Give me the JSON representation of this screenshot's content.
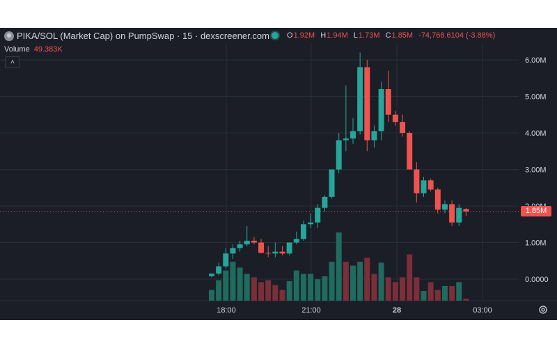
{
  "header": {
    "title": "PIKA/SOL (Market Cap) on PumpSwap · 15 · dexscreener.com",
    "ohlc": [
      {
        "label": "O",
        "value": "1.92M"
      },
      {
        "label": "H",
        "value": "1.94M"
      },
      {
        "label": "L",
        "value": "1.73M"
      },
      {
        "label": "C",
        "value": "1.85M"
      },
      {
        "label": "",
        "value": "-74,768.6104 (-3.88%)"
      }
    ],
    "volume_label": "Volume",
    "volume_value": "49.383K",
    "collapse_icon": "chevron-up-icon"
  },
  "price_badge": "1.85M",
  "colors": {
    "background": "#1b1e26",
    "up": "#26a69a",
    "down": "#ef5350",
    "grid": "#2a2e39",
    "text": "#d1d4dc"
  },
  "chart_data": {
    "type": "candlestick",
    "y_axis_ticks": [
      "6.00M",
      "5.00M",
      "4.00M",
      "3.00M",
      "2.00M",
      "1.00M",
      "0.0000"
    ],
    "x_axis_ticks": [
      "18:00",
      "21:00",
      "28",
      "03:00"
    ],
    "ylim": [
      -0.5,
      6.5
    ],
    "current_price": 1.85,
    "candles": [
      {
        "o": 0.08,
        "h": 0.15,
        "l": 0.05,
        "c": 0.15
      },
      {
        "o": 0.15,
        "h": 0.45,
        "l": 0.1,
        "c": 0.35
      },
      {
        "o": 0.35,
        "h": 0.85,
        "l": 0.3,
        "c": 0.7
      },
      {
        "o": 0.7,
        "h": 0.95,
        "l": 0.55,
        "c": 0.85
      },
      {
        "o": 0.85,
        "h": 1.05,
        "l": 0.75,
        "c": 0.95
      },
      {
        "o": 0.95,
        "h": 1.45,
        "l": 0.9,
        "c": 1.05
      },
      {
        "o": 1.05,
        "h": 1.15,
        "l": 0.95,
        "c": 1.0
      },
      {
        "o": 1.0,
        "h": 1.1,
        "l": 0.7,
        "c": 0.72
      },
      {
        "o": 0.72,
        "h": 0.9,
        "l": 0.6,
        "c": 0.7
      },
      {
        "o": 0.7,
        "h": 1.0,
        "l": 0.6,
        "c": 0.75
      },
      {
        "o": 0.75,
        "h": 0.9,
        "l": 0.65,
        "c": 0.7
      },
      {
        "o": 0.7,
        "h": 1.0,
        "l": 0.65,
        "c": 1.0
      },
      {
        "o": 1.0,
        "h": 1.3,
        "l": 0.95,
        "c": 1.1
      },
      {
        "o": 1.1,
        "h": 1.6,
        "l": 1.05,
        "c": 1.5
      },
      {
        "o": 1.5,
        "h": 1.8,
        "l": 1.4,
        "c": 1.55
      },
      {
        "o": 1.55,
        "h": 2.05,
        "l": 1.4,
        "c": 1.95
      },
      {
        "o": 1.95,
        "h": 2.3,
        "l": 1.85,
        "c": 2.25
      },
      {
        "o": 2.25,
        "h": 3.0,
        "l": 2.2,
        "c": 3.0
      },
      {
        "o": 3.0,
        "h": 4.0,
        "l": 2.9,
        "c": 3.8
      },
      {
        "o": 3.8,
        "h": 5.3,
        "l": 3.5,
        "c": 3.85
      },
      {
        "o": 3.85,
        "h": 4.4,
        "l": 3.7,
        "c": 4.05
      },
      {
        "o": 4.05,
        "h": 6.2,
        "l": 3.95,
        "c": 5.8
      },
      {
        "o": 5.8,
        "h": 6.0,
        "l": 3.5,
        "c": 3.8
      },
      {
        "o": 3.8,
        "h": 4.2,
        "l": 3.6,
        "c": 4.05
      },
      {
        "o": 4.05,
        "h": 5.4,
        "l": 3.8,
        "c": 5.2
      },
      {
        "o": 5.2,
        "h": 5.7,
        "l": 4.3,
        "c": 4.5
      },
      {
        "o": 4.5,
        "h": 4.6,
        "l": 4.2,
        "c": 4.3
      },
      {
        "o": 4.3,
        "h": 4.5,
        "l": 3.9,
        "c": 4.0
      },
      {
        "o": 4.0,
        "h": 4.05,
        "l": 3.0,
        "c": 3.0
      },
      {
        "o": 3.0,
        "h": 3.2,
        "l": 2.1,
        "c": 2.35
      },
      {
        "o": 2.35,
        "h": 2.8,
        "l": 2.25,
        "c": 2.7
      },
      {
        "o": 2.7,
        "h": 2.75,
        "l": 2.4,
        "c": 2.45
      },
      {
        "o": 2.45,
        "h": 2.5,
        "l": 1.8,
        "c": 1.9
      },
      {
        "o": 1.9,
        "h": 2.15,
        "l": 1.8,
        "c": 2.05
      },
      {
        "o": 2.05,
        "h": 2.15,
        "l": 1.45,
        "c": 1.55
      },
      {
        "o": 1.55,
        "h": 2.05,
        "l": 1.45,
        "c": 1.95
      },
      {
        "o": 1.92,
        "h": 1.94,
        "l": 1.73,
        "c": 1.85
      }
    ],
    "volumes": [
      {
        "v": 0.22,
        "up": true
      },
      {
        "v": 0.42,
        "up": true
      },
      {
        "v": 0.62,
        "up": true
      },
      {
        "v": 0.8,
        "up": true
      },
      {
        "v": 0.68,
        "up": true
      },
      {
        "v": 0.55,
        "up": true
      },
      {
        "v": 0.48,
        "up": false
      },
      {
        "v": 0.38,
        "up": false
      },
      {
        "v": 0.42,
        "up": false
      },
      {
        "v": 0.32,
        "up": false
      },
      {
        "v": 0.22,
        "up": false
      },
      {
        "v": 0.4,
        "up": true
      },
      {
        "v": 0.62,
        "up": true
      },
      {
        "v": 0.55,
        "up": true
      },
      {
        "v": 0.55,
        "up": true
      },
      {
        "v": 0.44,
        "up": true
      },
      {
        "v": 0.5,
        "up": true
      },
      {
        "v": 0.8,
        "up": true
      },
      {
        "v": 1.4,
        "up": true
      },
      {
        "v": 0.8,
        "up": false
      },
      {
        "v": 0.72,
        "up": true
      },
      {
        "v": 0.8,
        "up": true
      },
      {
        "v": 0.88,
        "up": false
      },
      {
        "v": 0.55,
        "up": false
      },
      {
        "v": 0.78,
        "up": true
      },
      {
        "v": 0.48,
        "up": false
      },
      {
        "v": 0.38,
        "up": false
      },
      {
        "v": 0.48,
        "up": false
      },
      {
        "v": 0.95,
        "up": false
      },
      {
        "v": 0.48,
        "up": false
      },
      {
        "v": 0.2,
        "up": true
      },
      {
        "v": 0.38,
        "up": false
      },
      {
        "v": 0.22,
        "up": false
      },
      {
        "v": 0.3,
        "up": true
      },
      {
        "v": 0.3,
        "up": false
      },
      {
        "v": 0.38,
        "up": true
      },
      {
        "v": 0.04,
        "up": false
      }
    ]
  }
}
